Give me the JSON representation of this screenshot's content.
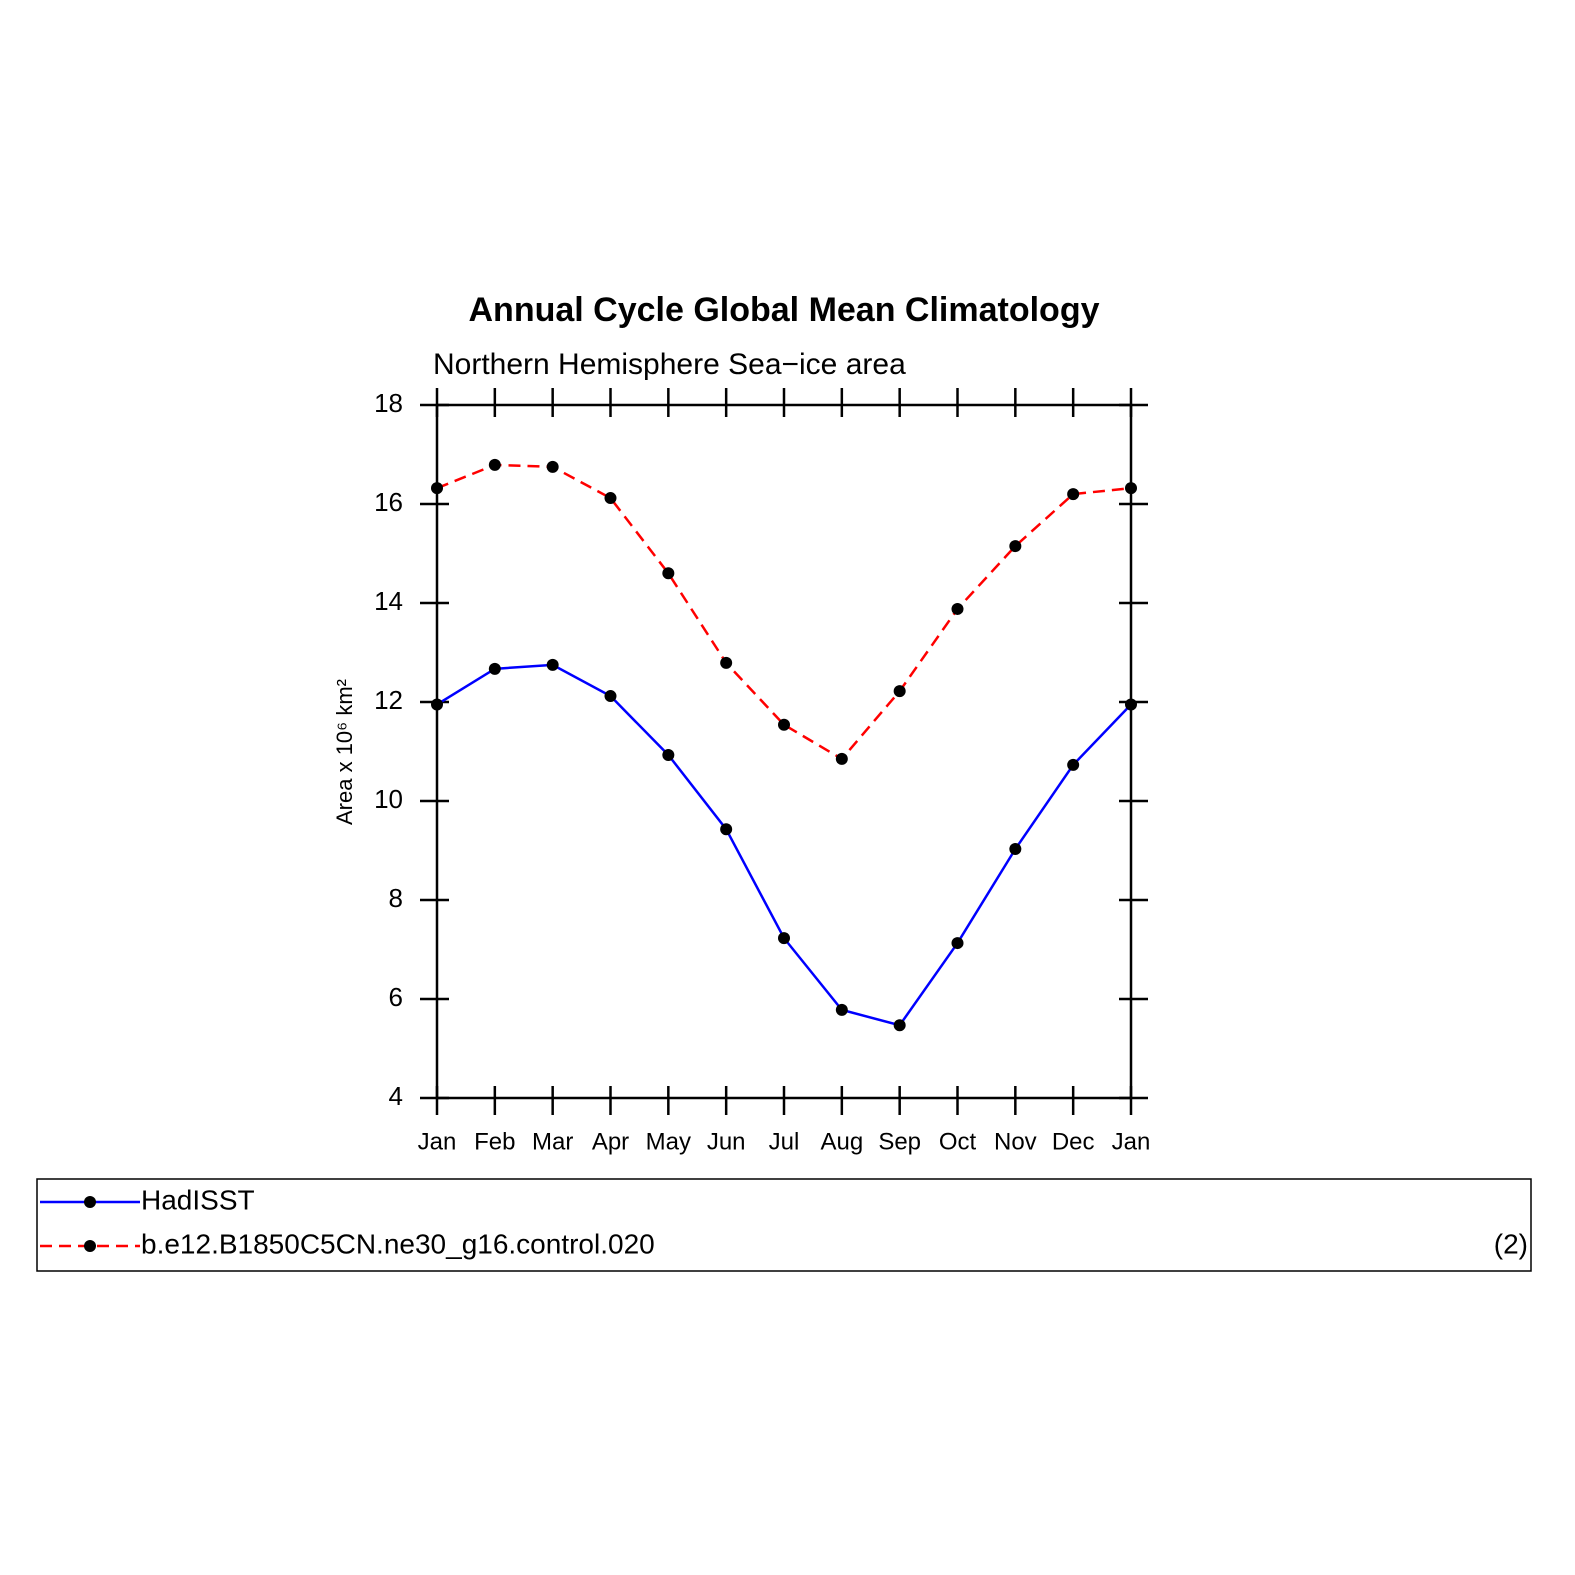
{
  "chart_data": {
    "type": "line",
    "title": "Annual Cycle Global Mean Climatology",
    "subtitle": "Northern Hemisphere Sea−ice area",
    "y_label": "Area x 10⁶ km²",
    "categories": [
      "Jan",
      "Feb",
      "Mar",
      "Apr",
      "May",
      "Jun",
      "Jul",
      "Aug",
      "Sep",
      "Oct",
      "Nov",
      "Dec",
      "Jan"
    ],
    "series": [
      {
        "name": "HadISST",
        "color": "#0000ff",
        "dash": false,
        "values": [
          11.95,
          12.67,
          12.75,
          12.12,
          10.93,
          9.43,
          7.23,
          5.78,
          5.47,
          7.13,
          9.03,
          10.73,
          11.95
        ]
      },
      {
        "name": "b.e12.B1850C5CN.ne30_g16.control.020",
        "color": "#ff0000",
        "dash": true,
        "values": [
          16.32,
          16.79,
          16.75,
          16.12,
          14.6,
          12.79,
          11.54,
          10.85,
          12.22,
          13.88,
          15.15,
          16.2,
          16.32
        ]
      }
    ],
    "ylim": [
      4,
      18
    ],
    "yticks": [
      4,
      6,
      8,
      10,
      12,
      14,
      16,
      18
    ],
    "grid": false,
    "legend_position": "bottom",
    "panel_label": "(2)"
  }
}
